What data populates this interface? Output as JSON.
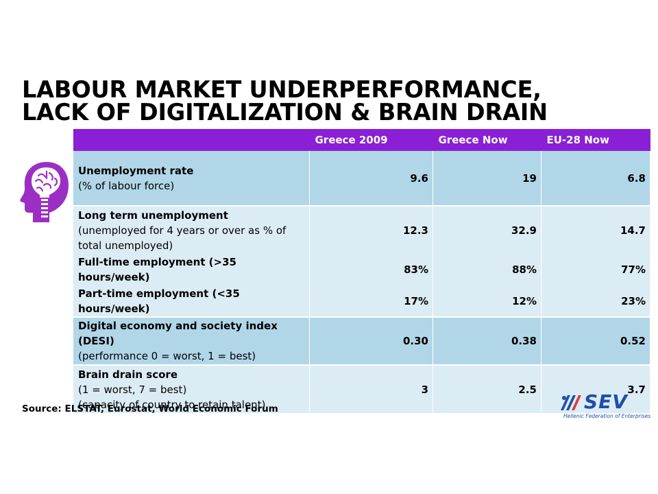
{
  "slide": {
    "title_line1": "LABOUR MARKET UNDERPERFORMANCE,",
    "title_line2": "LACK OF DIGITALIZATION & BRAIN DRAIN",
    "source": "Source: ELSTAT, Eurostat, World Economic Forum",
    "icon": "brain-head-icon"
  },
  "table": {
    "headers": [
      "",
      "Greece 2009",
      "Greece Now",
      "EU-28 Now"
    ],
    "rows": [
      {
        "label": "Unemployment rate",
        "sub": [
          "(% of labour force)"
        ],
        "values": [
          "9.6",
          "19",
          "6.8"
        ],
        "shade": "dark"
      },
      {
        "label": "Long term unemployment",
        "sub": [
          "(unemployed for 4 years or over as % of total unemployed)"
        ],
        "values": [
          "12.3",
          "32.9",
          "14.7"
        ],
        "shade": "light"
      },
      {
        "label": "Full-time employment (>35 hours/week)",
        "sub": [],
        "values": [
          "83%",
          "88%",
          "77%"
        ],
        "shade": "light"
      },
      {
        "label": "Part-time employment (<35 hours/week)",
        "sub": [],
        "values": [
          "17%",
          "12%",
          "23%"
        ],
        "shade": "light"
      },
      {
        "label": "Digital economy and society index (DESI)",
        "sub": [
          "(performance 0 = worst, 1 = best)"
        ],
        "values": [
          "0.30",
          "0.38",
          "0.52"
        ],
        "shade": "dark"
      },
      {
        "label": "Brain drain score",
        "sub": [
          "(1 = worst, 7 = best)",
          "(capacity of country to retain talent)"
        ],
        "values": [
          "3",
          "2.5",
          "3.7"
        ],
        "shade": "light"
      }
    ]
  },
  "logo": {
    "text": "SEV",
    "subtitle": "Hellenic Federation of Enterprises",
    "color": "#1f4fa8"
  },
  "colors": {
    "header_purple": "#8a1fd6",
    "row_dark": "#b1d6e8",
    "row_light": "#dcecf5",
    "icon_purple": "#9b2fc4"
  }
}
